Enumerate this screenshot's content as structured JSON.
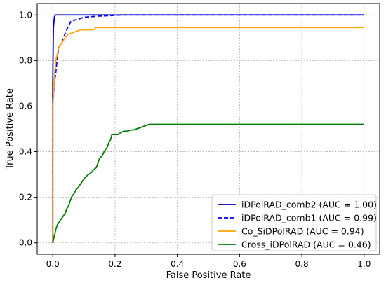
{
  "chart_data": {
    "type": "line",
    "title": "",
    "xlabel": "False Positive Rate",
    "ylabel": "True Positive Rate",
    "xlim": [
      -0.05,
      1.05
    ],
    "ylim": [
      -0.05,
      1.05
    ],
    "xticks": [
      "0.0",
      "0.2",
      "0.4",
      "0.6",
      "0.8",
      "1.0"
    ],
    "yticks": [
      "0.0",
      "0.2",
      "0.4",
      "0.6",
      "0.8",
      "1.0"
    ],
    "grid": true,
    "legend_position": "bottom-right",
    "series": [
      {
        "name": "iDPolRAD_comb2 (AUC = 1.00)",
        "color": "#0000cc",
        "dash": "solid",
        "x": [
          0,
          0,
          0.002,
          0.005,
          0.008,
          1.0
        ],
        "y": [
          0,
          0.7,
          0.94,
          0.99,
          1.0,
          1.0
        ]
      },
      {
        "name": "iDPolRAD_comb1 (AUC = 0.99)",
        "color": "#0000ff",
        "dash": "dashed",
        "x": [
          0,
          0,
          0.005,
          0.01,
          0.015,
          0.02,
          0.03,
          0.04,
          0.05,
          0.06,
          0.08,
          0.1,
          0.15,
          0.2,
          0.22,
          1.0
        ],
        "y": [
          0,
          0.6,
          0.7,
          0.75,
          0.82,
          0.86,
          0.88,
          0.92,
          0.95,
          0.975,
          0.98,
          0.99,
          0.995,
          0.998,
          1.0,
          1.0
        ]
      },
      {
        "name": "Co_SiDPolRAD (AUC = 0.94)",
        "color": "#ffa500",
        "dash": "solid",
        "x": [
          0,
          0,
          0.005,
          0.01,
          0.02,
          0.03,
          0.04,
          0.05,
          0.07,
          0.08,
          0.09,
          0.13,
          0.135,
          0.14,
          1.0
        ],
        "y": [
          0,
          0.6,
          0.72,
          0.8,
          0.86,
          0.88,
          0.9,
          0.915,
          0.925,
          0.93,
          0.935,
          0.935,
          0.94,
          0.945,
          0.945
        ]
      },
      {
        "name": "Cross_iDPolRAD (AUC = 0.46)",
        "color": "#008000",
        "dash": "solid",
        "x": [
          0,
          0.005,
          0.01,
          0.015,
          0.02,
          0.025,
          0.03,
          0.04,
          0.045,
          0.05,
          0.055,
          0.06,
          0.07,
          0.075,
          0.08,
          0.085,
          0.09,
          0.1,
          0.11,
          0.12,
          0.125,
          0.13,
          0.14,
          0.145,
          0.15,
          0.16,
          0.165,
          0.17,
          0.175,
          0.18,
          0.185,
          0.19,
          0.2,
          0.21,
          0.22,
          0.23,
          0.24,
          0.25,
          0.26,
          0.27,
          0.28,
          0.29,
          0.3,
          0.31,
          0.32,
          1.0
        ],
        "y": [
          0,
          0.03,
          0.06,
          0.08,
          0.09,
          0.1,
          0.11,
          0.13,
          0.15,
          0.16,
          0.18,
          0.2,
          0.22,
          0.235,
          0.24,
          0.25,
          0.26,
          0.28,
          0.295,
          0.305,
          0.31,
          0.32,
          0.33,
          0.35,
          0.37,
          0.385,
          0.4,
          0.41,
          0.42,
          0.44,
          0.45,
          0.475,
          0.475,
          0.475,
          0.485,
          0.49,
          0.49,
          0.495,
          0.495,
          0.5,
          0.505,
          0.51,
          0.515,
          0.52,
          0.52,
          0.52
        ]
      }
    ]
  }
}
